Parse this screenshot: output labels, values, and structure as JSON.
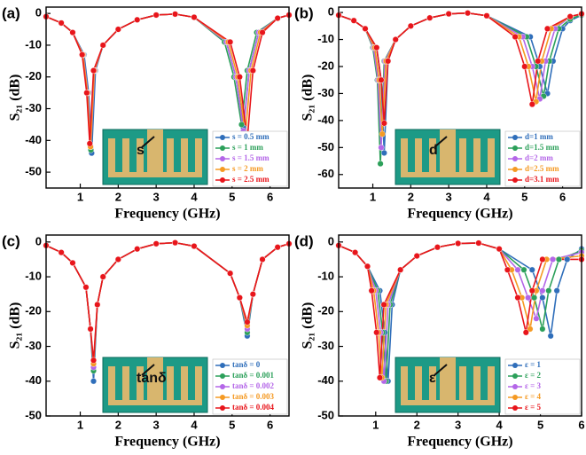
{
  "chart_data": [
    {
      "type": "line",
      "panel": "(a)",
      "xlabel": "Frequency (GHz)",
      "ylabel": "S₂₁ (dB)",
      "inset_label": "s",
      "xlim": [
        0.1,
        6.5
      ],
      "xticks": [
        1,
        2,
        3,
        4,
        5,
        6
      ],
      "ylim": [
        -55,
        2
      ],
      "yticks": [
        0,
        -10,
        -20,
        -30,
        -40,
        -50
      ],
      "series": [
        {
          "name": "s = 0.5 mm",
          "color": "#2f6eba",
          "x": [
            0.1,
            0.5,
            0.8,
            1.1,
            1.22,
            1.3,
            1.4,
            1.6,
            2,
            2.5,
            3,
            3.5,
            4,
            4.85,
            5.1,
            5.3,
            5.45,
            5.7,
            6.2,
            6.5
          ],
          "values": [
            -1,
            -3,
            -6,
            -13,
            -25,
            -44,
            -18,
            -10,
            -5,
            -2,
            -0.5,
            -0.2,
            -1.2,
            -9,
            -20,
            -36,
            -18,
            -6,
            -1.5,
            -0.5
          ]
        },
        {
          "name": "s = 1 mm",
          "color": "#2ca05a",
          "x": [
            0.1,
            0.5,
            0.8,
            1.08,
            1.2,
            1.28,
            1.38,
            1.6,
            2,
            2.5,
            3,
            3.5,
            4,
            4.8,
            5.05,
            5.25,
            5.4,
            5.65,
            6.2,
            6.5
          ],
          "values": [
            -1,
            -3,
            -6,
            -13,
            -25,
            -43,
            -18,
            -10,
            -5,
            -2,
            -0.5,
            -0.2,
            -1.2,
            -9,
            -20,
            -35,
            -18,
            -6,
            -1.5,
            -0.5
          ]
        },
        {
          "name": "s = 1.5 mm",
          "color": "#b466e8",
          "x": [
            0.1,
            0.5,
            0.8,
            1.08,
            1.2,
            1.28,
            1.38,
            1.6,
            2,
            2.5,
            3,
            3.5,
            4,
            4.85,
            5.1,
            5.3,
            5.45,
            5.7,
            6.2,
            6.5
          ],
          "values": [
            -1,
            -3,
            -6,
            -13,
            -25,
            -42,
            -18,
            -10,
            -5,
            -2,
            -0.5,
            -0.2,
            -1.2,
            -9,
            -20,
            -37,
            -18,
            -6,
            -1.5,
            -0.5
          ]
        },
        {
          "name": "s = 2 mm",
          "color": "#f59a23",
          "x": [
            0.1,
            0.5,
            0.8,
            1.07,
            1.19,
            1.27,
            1.37,
            1.6,
            2,
            2.5,
            3,
            3.5,
            4,
            4.9,
            5.15,
            5.35,
            5.5,
            5.75,
            6.2,
            6.5
          ],
          "values": [
            -1,
            -3,
            -6,
            -13,
            -25,
            -42,
            -18,
            -10,
            -5,
            -2,
            -0.5,
            -0.2,
            -1.2,
            -9,
            -20,
            -38,
            -18,
            -6,
            -1.5,
            -0.5
          ]
        },
        {
          "name": "s = 2.5 mm",
          "color": "#e8151b",
          "x": [
            0.1,
            0.5,
            0.8,
            1.05,
            1.17,
            1.25,
            1.35,
            1.6,
            2,
            2.5,
            3,
            3.5,
            4,
            4.95,
            5.2,
            5.4,
            5.55,
            5.8,
            6.2,
            6.5
          ],
          "values": [
            -1,
            -3,
            -6,
            -13,
            -25,
            -41,
            -18,
            -10,
            -5,
            -2,
            -0.5,
            -0.2,
            -1.2,
            -9,
            -20,
            -40,
            -18,
            -6,
            -1.5,
            -0.5
          ]
        }
      ]
    },
    {
      "type": "line",
      "panel": "(b)",
      "xlabel": "Frequency (GHz)",
      "ylabel": "S₂₁ (dB)",
      "inset_label": "d",
      "xlim": [
        0.1,
        6.5
      ],
      "xticks": [
        1,
        2,
        3,
        4,
        5,
        6
      ],
      "ylim": [
        -65,
        2
      ],
      "yticks": [
        0,
        -10,
        -20,
        -30,
        -40,
        -50,
        -60
      ],
      "series": [
        {
          "name": "d=1 mm",
          "color": "#2f6eba",
          "x": [
            0.1,
            0.5,
            0.8,
            1.1,
            1.22,
            1.3,
            1.4,
            1.6,
            2,
            2.5,
            3,
            3.5,
            4,
            5.15,
            5.4,
            5.6,
            5.75,
            6,
            6.2,
            6.5
          ],
          "values": [
            -1,
            -3,
            -6,
            -13,
            -25,
            -52,
            -18,
            -10,
            -5,
            -2,
            -0.5,
            -0.2,
            -1.2,
            -9,
            -20,
            -30,
            -18,
            -6,
            -3,
            -1
          ]
        },
        {
          "name": "d=1.5 mm",
          "color": "#2ca05a",
          "x": [
            0.1,
            0.5,
            0.8,
            1,
            1.12,
            1.2,
            1.3,
            1.6,
            2,
            2.5,
            3,
            3.5,
            4,
            5.05,
            5.3,
            5.5,
            5.65,
            5.9,
            6.2,
            6.5
          ],
          "values": [
            -1,
            -3,
            -6,
            -13,
            -25,
            -56,
            -18,
            -10,
            -5,
            -2,
            -0.5,
            -0.2,
            -1.2,
            -9,
            -20,
            -31,
            -18,
            -6,
            -2.5,
            -0.8
          ]
        },
        {
          "name": "d=2 mm",
          "color": "#b466e8",
          "x": [
            0.1,
            0.5,
            0.8,
            1.02,
            1.14,
            1.22,
            1.32,
            1.6,
            2,
            2.5,
            3,
            3.5,
            4,
            4.95,
            5.2,
            5.4,
            5.55,
            5.8,
            6.2,
            6.5
          ],
          "values": [
            -1,
            -3,
            -6,
            -13,
            -25,
            -50,
            -18,
            -10,
            -5,
            -2,
            -0.5,
            -0.2,
            -1.2,
            -9,
            -20,
            -32,
            -18,
            -6,
            -1.5,
            -0.5
          ]
        },
        {
          "name": "d=2.5 mm",
          "color": "#f59a23",
          "x": [
            0.1,
            0.5,
            0.8,
            1.05,
            1.17,
            1.25,
            1.35,
            1.6,
            2,
            2.5,
            3,
            3.5,
            4,
            4.85,
            5.1,
            5.3,
            5.45,
            5.7,
            6.2,
            6.5
          ],
          "values": [
            -1,
            -3,
            -6,
            -13,
            -25,
            -45,
            -18,
            -10,
            -5,
            -2,
            -0.5,
            -0.2,
            -1.2,
            -9,
            -20,
            -33,
            -18,
            -6,
            -1.5,
            -0.5
          ]
        },
        {
          "name": "d=3.1 mm",
          "color": "#e8151b",
          "x": [
            0.1,
            0.5,
            0.8,
            1.1,
            1.22,
            1.3,
            1.4,
            1.6,
            2,
            2.5,
            3,
            3.5,
            4,
            4.75,
            5,
            5.2,
            5.35,
            5.6,
            6.2,
            6.5
          ],
          "values": [
            -1,
            -3,
            -6,
            -13,
            -25,
            -41,
            -18,
            -10,
            -5,
            -2,
            -0.5,
            -0.2,
            -1.2,
            -9,
            -20,
            -34,
            -18,
            -6,
            -1.5,
            -0.5
          ]
        }
      ]
    },
    {
      "type": "line",
      "panel": "(c)",
      "xlabel": "Frequency (GHz)",
      "ylabel": "S₂₁ (dB)",
      "inset_label": "tanδ",
      "xlim": [
        0.1,
        6.5
      ],
      "xticks": [
        1,
        2,
        3,
        4,
        5,
        6
      ],
      "ylim": [
        -50,
        2
      ],
      "yticks": [
        0,
        -10,
        -20,
        -30,
        -40,
        -50
      ],
      "series": [
        {
          "name": "tanδ = 0",
          "color": "#2f6eba",
          "x": [
            0.1,
            0.5,
            0.8,
            1.15,
            1.27,
            1.35,
            1.45,
            1.6,
            2,
            2.5,
            3,
            3.5,
            4,
            4.95,
            5.2,
            5.4,
            5.55,
            5.8,
            6.2,
            6.5
          ],
          "values": [
            -1,
            -3,
            -6,
            -13,
            -25,
            -40,
            -18,
            -10,
            -5,
            -2,
            -0.5,
            -0.2,
            -1.2,
            -9,
            -16,
            -27,
            -15,
            -5,
            -1.5,
            -0.5
          ]
        },
        {
          "name": "tanδ = 0.001",
          "color": "#2ca05a",
          "x": [
            0.1,
            0.5,
            0.8,
            1.15,
            1.27,
            1.35,
            1.45,
            1.6,
            2,
            2.5,
            3,
            3.5,
            4,
            4.95,
            5.2,
            5.4,
            5.55,
            5.8,
            6.2,
            6.5
          ],
          "values": [
            -1,
            -3,
            -6,
            -13,
            -25,
            -37,
            -18,
            -10,
            -5,
            -2,
            -0.5,
            -0.2,
            -1.2,
            -9,
            -16,
            -26,
            -15,
            -5,
            -1.5,
            -0.5
          ]
        },
        {
          "name": "tanδ = 0.002",
          "color": "#b466e8",
          "x": [
            0.1,
            0.5,
            0.8,
            1.15,
            1.27,
            1.35,
            1.45,
            1.6,
            2,
            2.5,
            3,
            3.5,
            4,
            4.95,
            5.2,
            5.4,
            5.55,
            5.8,
            6.2,
            6.5
          ],
          "values": [
            -1,
            -3,
            -6,
            -13,
            -25,
            -36,
            -18,
            -10,
            -5,
            -2,
            -0.5,
            -0.2,
            -1.2,
            -9,
            -16,
            -25,
            -15,
            -5,
            -1.5,
            -0.5
          ]
        },
        {
          "name": "tanδ = 0.003",
          "color": "#f59a23",
          "x": [
            0.1,
            0.5,
            0.8,
            1.15,
            1.27,
            1.35,
            1.45,
            1.6,
            2,
            2.5,
            3,
            3.5,
            4,
            4.95,
            5.2,
            5.4,
            5.55,
            5.8,
            6.2,
            6.5
          ],
          "values": [
            -1,
            -3,
            -6,
            -13,
            -25,
            -35,
            -18,
            -10,
            -5,
            -2,
            -0.5,
            -0.2,
            -1.2,
            -9,
            -16,
            -24,
            -15,
            -5,
            -1.5,
            -0.5
          ]
        },
        {
          "name": "tanδ = 0.004",
          "color": "#e8151b",
          "x": [
            0.1,
            0.5,
            0.8,
            1.15,
            1.27,
            1.35,
            1.45,
            1.6,
            2,
            2.5,
            3,
            3.5,
            4,
            4.95,
            5.2,
            5.4,
            5.55,
            5.8,
            6.2,
            6.5
          ],
          "values": [
            -1,
            -3,
            -6,
            -13,
            -25,
            -34,
            -18,
            -10,
            -5,
            -2,
            -0.5,
            -0.2,
            -1.2,
            -9,
            -16,
            -23,
            -15,
            -5,
            -1.5,
            -0.5
          ]
        }
      ]
    },
    {
      "type": "line",
      "panel": "(d)",
      "xlabel": "Frequency (GHz)",
      "ylabel": "S₂₁ (dB)",
      "inset_label": "ε",
      "xlim": [
        0.1,
        6
      ],
      "xticks": [
        1,
        2,
        3,
        4,
        5,
        6
      ],
      "ylim": [
        -50,
        2
      ],
      "yticks": [
        0,
        -10,
        -20,
        -30,
        -40,
        -50
      ],
      "series": [
        {
          "name": "ε = 1",
          "color": "#2f6eba",
          "x": [
            0.1,
            0.5,
            0.8,
            1.1,
            1.22,
            1.3,
            1.4,
            1.6,
            2,
            2.5,
            3,
            3.5,
            4,
            4.8,
            5.05,
            5.25,
            5.4,
            5.65,
            6
          ],
          "values": [
            -1,
            -3,
            -7,
            -14,
            -26,
            -40,
            -18,
            -8,
            -4,
            -1.5,
            -0.4,
            -0.3,
            -2,
            -8,
            -16,
            -27,
            -14,
            -5,
            -2
          ]
        },
        {
          "name": "ε = 2",
          "color": "#2ca05a",
          "x": [
            0.1,
            0.5,
            0.8,
            1.05,
            1.17,
            1.25,
            1.35,
            1.6,
            2,
            2.5,
            3,
            3.5,
            4,
            4.6,
            4.85,
            5.05,
            5.2,
            5.45,
            6
          ],
          "values": [
            -1,
            -3,
            -7,
            -14,
            -26,
            -40,
            -18,
            -8,
            -4,
            -1.5,
            -0.4,
            -0.3,
            -2,
            -8,
            -16,
            -25,
            -14,
            -5,
            -2.5
          ]
        },
        {
          "name": "ε = 3",
          "color": "#b466e8",
          "x": [
            0.1,
            0.5,
            0.8,
            1,
            1.12,
            1.2,
            1.3,
            1.6,
            2,
            2.5,
            3,
            3.5,
            4,
            4.45,
            4.7,
            4.9,
            5.05,
            5.3,
            6
          ],
          "values": [
            -1,
            -3,
            -7,
            -14,
            -26,
            -40,
            -18,
            -8,
            -4,
            -1.5,
            -0.4,
            -0.3,
            -2,
            -8,
            -16,
            -22,
            -14,
            -5,
            -3
          ]
        },
        {
          "name": "ε = 4",
          "color": "#f59a23",
          "x": [
            0.1,
            0.5,
            0.8,
            0.95,
            1.07,
            1.15,
            1.25,
            1.6,
            2,
            2.5,
            3,
            3.5,
            4,
            4.3,
            4.55,
            4.75,
            4.9,
            5.15,
            6
          ],
          "values": [
            -1,
            -3,
            -7,
            -14,
            -26,
            -39,
            -18,
            -8,
            -4,
            -1.5,
            -0.4,
            -0.3,
            -2,
            -8,
            -16,
            -25,
            -14,
            -5,
            -4
          ]
        },
        {
          "name": "ε = 5",
          "color": "#e8151b",
          "x": [
            0.1,
            0.5,
            0.8,
            0.9,
            1.02,
            1.1,
            1.2,
            1.6,
            2,
            2.5,
            3,
            3.5,
            4,
            4.2,
            4.45,
            4.65,
            4.8,
            5.05,
            6
          ],
          "values": [
            -1,
            -3,
            -7,
            -14,
            -26,
            -39,
            -18,
            -8,
            -4,
            -1.5,
            -0.4,
            -0.3,
            -2,
            -8,
            -16,
            -26,
            -14,
            -5,
            -5
          ]
        }
      ]
    }
  ]
}
